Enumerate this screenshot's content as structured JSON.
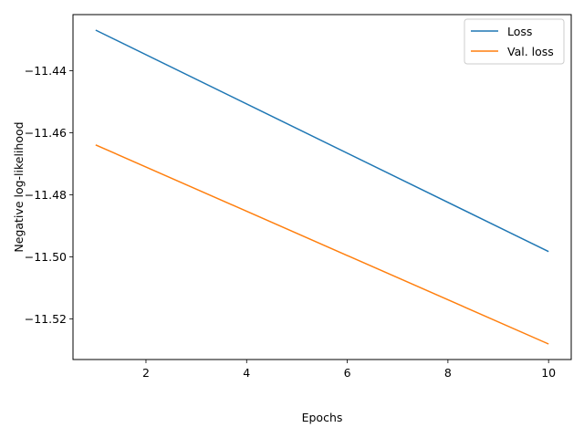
{
  "chart_data": {
    "type": "line",
    "title": "",
    "xlabel": "Epochs",
    "ylabel": "Negative log-likelihood",
    "xlim": [
      0.55,
      10.45
    ],
    "ylim": [
      -11.5331,
      -11.4219
    ],
    "x_ticks": [
      2,
      4,
      6,
      8,
      10
    ],
    "x_tick_labels": [
      "2",
      "4",
      "6",
      "8",
      "10"
    ],
    "y_ticks": [
      -11.44,
      -11.46,
      -11.48,
      -11.5,
      -11.52
    ],
    "y_tick_labels": [
      "−11.44",
      "−11.46",
      "−11.48",
      "−11.50",
      "−11.52"
    ],
    "grid": false,
    "legend_position": "top-right",
    "series": [
      {
        "name": "Loss",
        "color": "#1f77b4",
        "x": [
          1,
          10
        ],
        "y": [
          -11.4269,
          -11.4983
        ]
      },
      {
        "name": "Val. loss",
        "color": "#ff7f0e",
        "x": [
          1,
          10
        ],
        "y": [
          -11.4639,
          -11.5281
        ]
      }
    ]
  }
}
